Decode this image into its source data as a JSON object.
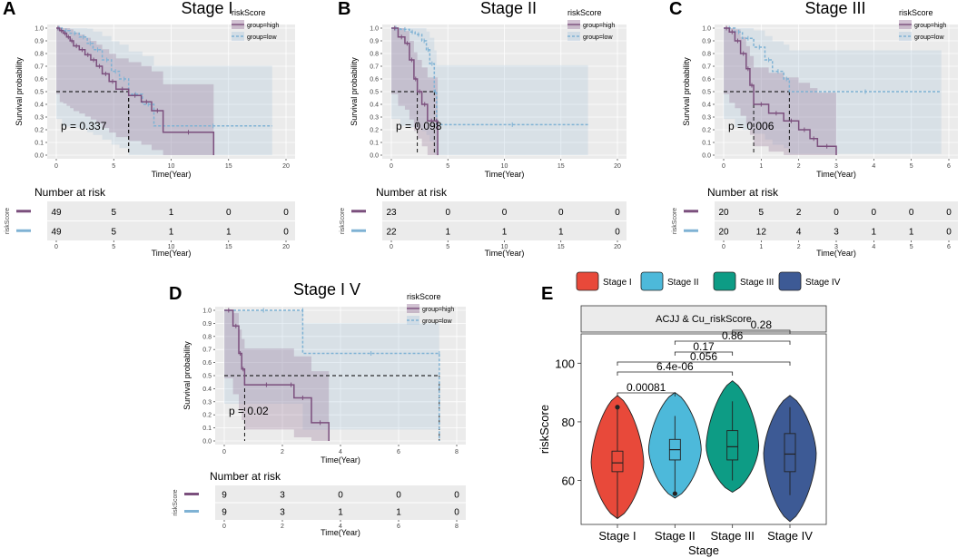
{
  "colors": {
    "high": "#7b4f7d",
    "high_fill": "#8e6a90",
    "low": "#7fb2d4",
    "low_fill": "#a9c6dc",
    "panel_bg": "#ebebeb",
    "stage1": "#e8493a",
    "stage2": "#4db9da",
    "stage3": "#0d9c85",
    "stage4": "#3d5a95"
  },
  "km_common": {
    "ylabel": "Survival probability",
    "xlabel": "Time(Year)",
    "yticks": [
      "0.0",
      "0.1",
      "0.2",
      "0.3",
      "0.4",
      "0.5",
      "0.6",
      "0.7",
      "0.8",
      "0.9",
      "1.0"
    ],
    "legend_title": "riskScore",
    "legend_high": "group=high",
    "legend_low": "group=low",
    "risk_title": "Number at risk",
    "risk_ylabel": "riskScore"
  },
  "km_panels": [
    {
      "letter": "A",
      "title": "Stage I",
      "pvalue": "p = 0.337",
      "xmax": 20,
      "xticks": [
        "0",
        "5",
        "10",
        "15",
        "20"
      ],
      "risk_times": [
        0,
        5,
        10,
        15,
        20
      ],
      "high": [
        [
          0,
          1
        ],
        [
          0.3,
          0.98
        ],
        [
          0.6,
          0.96
        ],
        [
          0.9,
          0.93
        ],
        [
          1.2,
          0.9
        ],
        [
          1.5,
          0.86
        ],
        [
          2,
          0.83
        ],
        [
          2.5,
          0.79
        ],
        [
          3,
          0.75
        ],
        [
          3.5,
          0.7
        ],
        [
          4,
          0.64
        ],
        [
          4.6,
          0.58
        ],
        [
          5.2,
          0.52
        ],
        [
          6.3,
          0.47
        ],
        [
          7.4,
          0.42
        ],
        [
          8.3,
          0.35
        ],
        [
          9.3,
          0.18
        ],
        [
          13.7,
          0.0
        ]
      ],
      "low": [
        [
          0,
          1
        ],
        [
          0.5,
          0.98
        ],
        [
          1.2,
          0.96
        ],
        [
          2,
          0.93
        ],
        [
          2.7,
          0.88
        ],
        [
          3.2,
          0.83
        ],
        [
          4,
          0.75
        ],
        [
          4.8,
          0.66
        ],
        [
          5.5,
          0.6
        ],
        [
          6.3,
          0.48
        ],
        [
          7.5,
          0.4
        ],
        [
          8.5,
          0.23
        ],
        [
          18.8,
          0.23
        ]
      ],
      "risk_high": [
        "49",
        "5",
        "1",
        "0",
        "0"
      ],
      "risk_low": [
        "49",
        "5",
        "1",
        "1",
        "0"
      ]
    },
    {
      "letter": "B",
      "title": "Stage II",
      "pvalue": "p = 0.098",
      "xmax": 20,
      "xticks": [
        "0",
        "5",
        "10",
        "15",
        "20"
      ],
      "risk_times": [
        0,
        5,
        10,
        15,
        20
      ],
      "high": [
        [
          0,
          1
        ],
        [
          0.6,
          0.93
        ],
        [
          1.2,
          0.88
        ],
        [
          1.6,
          0.75
        ],
        [
          2,
          0.6
        ],
        [
          2.3,
          0.5
        ],
        [
          2.7,
          0.4
        ],
        [
          3.2,
          0.27
        ],
        [
          3.9,
          0.27
        ],
        [
          4.1,
          0.0
        ]
      ],
      "low": [
        [
          0,
          1
        ],
        [
          0.8,
          0.99
        ],
        [
          1.6,
          0.97
        ],
        [
          2.1,
          0.95
        ],
        [
          2.7,
          0.9
        ],
        [
          3.1,
          0.83
        ],
        [
          3.4,
          0.72
        ],
        [
          3.8,
          0.5
        ],
        [
          4.0,
          0.24
        ],
        [
          17.4,
          0.24
        ]
      ],
      "risk_high": [
        "23",
        "0",
        "0",
        "0",
        "0"
      ],
      "risk_low": [
        "22",
        "1",
        "1",
        "1",
        "0"
      ]
    },
    {
      "letter": "C",
      "title": "Stage III",
      "pvalue": "p = 0.006",
      "xmax": 6,
      "xticks": [
        "0",
        "1",
        "2",
        "3",
        "4",
        "5",
        "6"
      ],
      "risk_times": [
        0,
        1,
        2,
        3,
        4,
        5,
        6
      ],
      "high": [
        [
          0,
          1
        ],
        [
          0.15,
          0.97
        ],
        [
          0.3,
          0.9
        ],
        [
          0.45,
          0.8
        ],
        [
          0.6,
          0.68
        ],
        [
          0.7,
          0.55
        ],
        [
          0.8,
          0.4
        ],
        [
          1.2,
          0.33
        ],
        [
          1.6,
          0.27
        ],
        [
          2.0,
          0.2
        ],
        [
          2.3,
          0.13
        ],
        [
          2.5,
          0.07
        ],
        [
          3.0,
          0.0
        ]
      ],
      "low": [
        [
          0,
          1
        ],
        [
          0.3,
          0.97
        ],
        [
          0.5,
          0.92
        ],
        [
          0.8,
          0.85
        ],
        [
          1.1,
          0.75
        ],
        [
          1.3,
          0.66
        ],
        [
          1.6,
          0.6
        ],
        [
          1.75,
          0.5
        ],
        [
          5.8,
          0.5
        ]
      ],
      "risk_high": [
        "20",
        "5",
        "2",
        "0",
        "0",
        "0",
        "0"
      ],
      "risk_low": [
        "20",
        "12",
        "4",
        "3",
        "1",
        "1",
        "0"
      ]
    },
    {
      "letter": "D",
      "title": "Stage I V",
      "pvalue": "p = 0.02",
      "xmax": 8,
      "xticks": [
        "0",
        "2",
        "4",
        "6",
        "8"
      ],
      "risk_times": [
        0,
        2,
        4,
        6,
        8
      ],
      "high": [
        [
          0,
          1
        ],
        [
          0.3,
          0.88
        ],
        [
          0.5,
          0.67
        ],
        [
          0.6,
          0.55
        ],
        [
          0.7,
          0.43
        ],
        [
          2.2,
          0.43
        ],
        [
          2.4,
          0.33
        ],
        [
          3.0,
          0.14
        ],
        [
          3.6,
          0.0
        ]
      ],
      "low": [
        [
          0,
          1
        ],
        [
          2.7,
          1
        ],
        [
          2.7,
          0.67
        ],
        [
          7.4,
          0.67
        ],
        [
          7.4,
          0.0
        ]
      ],
      "risk_high": [
        "9",
        "3",
        "0",
        "0",
        "0"
      ],
      "risk_low": [
        "9",
        "3",
        "1",
        "1",
        "0"
      ]
    }
  ],
  "chart_data": {
    "type": "violin",
    "panel": "E",
    "strip_title": "ACJJ & Cu_riskScore",
    "xlabel": "Stage",
    "ylabel": "riskScore",
    "categories": [
      "Stage I",
      "Stage II",
      "Stage III",
      "Stage IV"
    ],
    "yticks": [
      60,
      80,
      100
    ],
    "ylim": [
      45,
      110
    ],
    "legend": [
      "Stage I",
      "Stage II",
      "Stage III",
      "Stage IV"
    ],
    "series": [
      {
        "name": "Stage I",
        "min": 47,
        "q1": 63,
        "median": 66,
        "q3": 70,
        "max": 85,
        "violin_min": 47,
        "violin_max": 89
      },
      {
        "name": "Stage II",
        "min": 55,
        "q1": 67,
        "median": 70.5,
        "q3": 74,
        "max": 82,
        "violin_min": 54,
        "violin_max": 90
      },
      {
        "name": "Stage III",
        "min": 60,
        "q1": 67,
        "median": 71.5,
        "q3": 77,
        "max": 87,
        "violin_min": 56,
        "violin_max": 94
      },
      {
        "name": "Stage IV",
        "min": 55,
        "q1": 63,
        "median": 69,
        "q3": 76,
        "max": 85,
        "violin_min": 46,
        "violin_max": 89
      }
    ],
    "comparisons": [
      {
        "pair": [
          "Stage I",
          "Stage II"
        ],
        "label": "0.00081"
      },
      {
        "pair": [
          "Stage I",
          "Stage III"
        ],
        "label": "6.4e-06"
      },
      {
        "pair": [
          "Stage I",
          "Stage IV"
        ],
        "label": "0.056"
      },
      {
        "pair": [
          "Stage II",
          "Stage III"
        ],
        "label": "0.17"
      },
      {
        "pair": [
          "Stage II",
          "Stage IV"
        ],
        "label": "0.86"
      },
      {
        "pair": [
          "Stage III",
          "Stage IV"
        ],
        "label": "0.28"
      }
    ]
  }
}
